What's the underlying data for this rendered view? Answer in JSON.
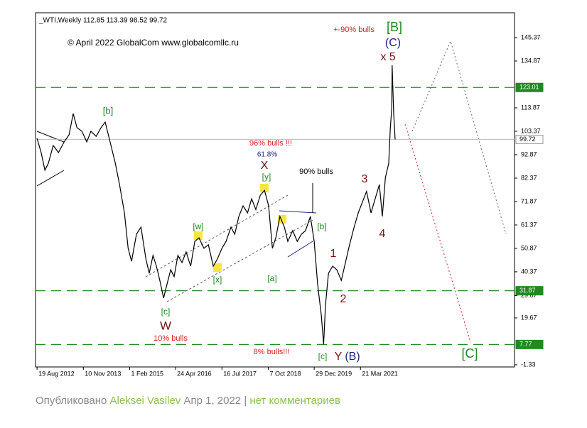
{
  "chart_data": {
    "type": "line",
    "header": "_WTI,Weekly  112.85 113.39 98.52 99.72",
    "copyright": "© April 2022 GlobalCom www.globalcomllc.ru",
    "xlim": [
      2012.59,
      2025.31
    ],
    "xticks": [
      {
        "value": 2012.63,
        "label": "19 Aug 2012"
      },
      {
        "value": 2013.86,
        "label": "10 Nov 2013"
      },
      {
        "value": 2015.09,
        "label": "1 Feb 2015"
      },
      {
        "value": 2016.31,
        "label": "24 Apr 2016"
      },
      {
        "value": 2017.54,
        "label": "16 Jul 2017"
      },
      {
        "value": 2018.77,
        "label": "7 Oct 2018"
      },
      {
        "value": 2019.99,
        "label": "29 Dec 2019"
      },
      {
        "value": 2021.22,
        "label": "21 Mar 2021"
      }
    ],
    "ylim": [
      -2.3,
      156.5
    ],
    "yticks": [
      145.37,
      134.87,
      113.87,
      103.37,
      92.87,
      82.37,
      71.87,
      61.37,
      50.87,
      40.37,
      29.67,
      19.67,
      -1.33
    ],
    "levels": [
      {
        "value": 123.01,
        "color": "#1f8a1f"
      },
      {
        "value": 31.87,
        "color": "#1f8a1f"
      },
      {
        "value": 7.77,
        "color": "#1f8a1f"
      },
      {
        "value": 99.72,
        "color": "#bbbbbb"
      }
    ],
    "series": [
      {
        "color": "#000000",
        "x": [
          2012.63,
          2012.74,
          2012.84,
          2012.93,
          2013.06,
          2013.2,
          2013.35,
          2013.48,
          2013.59,
          2013.69,
          2013.82,
          2013.95,
          2014.06,
          2014.2,
          2014.33,
          2014.44,
          2014.57,
          2014.71,
          2014.82,
          2014.95,
          2015.05,
          2015.14,
          2015.27,
          2015.39,
          2015.52,
          2015.61,
          2015.71,
          2015.8,
          2015.89,
          2015.99,
          2016.06,
          2016.18,
          2016.27,
          2016.37,
          2016.48,
          2016.59,
          2016.71,
          2016.82,
          2016.93,
          2017.06,
          2017.18,
          2017.31,
          2017.42,
          2017.54,
          2017.65,
          2017.78,
          2017.88,
          2017.99,
          2018.1,
          2018.22,
          2018.33,
          2018.44,
          2018.56,
          2018.67,
          2018.78,
          2018.88,
          2018.97,
          2019.08,
          2019.2,
          2019.29,
          2019.42,
          2019.54,
          2019.65,
          2019.76,
          2019.89,
          2019.99,
          2020.08,
          2020.18,
          2020.24,
          2020.29,
          2020.37,
          2020.48,
          2020.59,
          2020.71,
          2020.82,
          2020.93,
          2021.05,
          2021.16,
          2021.27,
          2021.38,
          2021.5,
          2021.61,
          2021.72,
          2021.8,
          2021.88,
          2021.97,
          2022.01,
          2022.05,
          2022.06,
          2022.1,
          2022.14
        ],
        "values": [
          100.2,
          93.8,
          85.9,
          89,
          97,
          93.8,
          98.6,
          101.8,
          111.3,
          105,
          103.4,
          98.6,
          103.4,
          101.1,
          105,
          107.5,
          98.6,
          89,
          79.5,
          66.8,
          50.9,
          45.1,
          57.2,
          60.4,
          46.1,
          39.7,
          47.7,
          42.9,
          36.5,
          28.6,
          33.4,
          41.3,
          38.2,
          47.7,
          44.5,
          49.3,
          42.9,
          54,
          55.6,
          50.9,
          52.5,
          42.9,
          46.1,
          50.9,
          54,
          60.4,
          57.2,
          65.2,
          69.9,
          66.8,
          73.1,
          68.3,
          74.7,
          76.9,
          69.9,
          50.9,
          55.6,
          65.2,
          60.4,
          54,
          58.8,
          54,
          57.2,
          58.8,
          65.2,
          54,
          35,
          20.6,
          7.9,
          25.4,
          39.7,
          42.9,
          41.3,
          36.5,
          44.5,
          52.5,
          60.4,
          66.8,
          71.6,
          76.4,
          66.8,
          73.1,
          79.5,
          65.2,
          82.6,
          89,
          104,
          114,
          133,
          112,
          99.72
        ]
      }
    ],
    "annotations": [
      {
        "text": "[B]",
        "color": "#1f8a1f"
      },
      {
        "text": "+-90% bulls",
        "color": "#d42020"
      },
      {
        "text": "(C)",
        "color": "#1a237e"
      },
      {
        "text": "x 5",
        "color": "#7b1010"
      },
      {
        "text": "[b]",
        "color": "#1f8a1f"
      },
      {
        "text": "96% bulls !!!",
        "color": "#d42020"
      },
      {
        "text": "61.8%",
        "color": "#1a237e"
      },
      {
        "text": "X",
        "color": "#7b1010"
      },
      {
        "text": "[y]",
        "color": "#1f8a1f"
      },
      {
        "text": "90% bulls",
        "color": "#000000"
      },
      {
        "text": "3",
        "color": "#7b1010"
      },
      {
        "text": "[w]",
        "color": "#1f8a1f"
      },
      {
        "text": "[b]",
        "color": "#1f8a1f"
      },
      {
        "text": "4",
        "color": "#7b1010"
      },
      {
        "text": "1",
        "color": "#7b1010"
      },
      {
        "text": "[a]",
        "color": "#1f8a1f"
      },
      {
        "text": "[x]",
        "color": "#1f8a1f"
      },
      {
        "text": "2",
        "color": "#7b1010"
      },
      {
        "text": "[c]",
        "color": "#1f8a1f"
      },
      {
        "text": "W",
        "color": "#7b1010"
      },
      {
        "text": "10% bulls",
        "color": "#d42020"
      },
      {
        "text": "8% bulls!!!",
        "color": "#d42020"
      },
      {
        "text": "[c]",
        "color": "#1f8a1f"
      },
      {
        "text": "Y",
        "color": "#7b1010"
      },
      {
        "text": "(B)",
        "color": "#1a237e"
      },
      {
        "text": "[C]",
        "color": "#1f8a1f"
      }
    ]
  },
  "footer": {
    "prefix": "Опубликовано ",
    "author": "Aleksei Vasilev",
    "date": " Апр 1, 2022 | ",
    "comments": "нет комментариев"
  }
}
